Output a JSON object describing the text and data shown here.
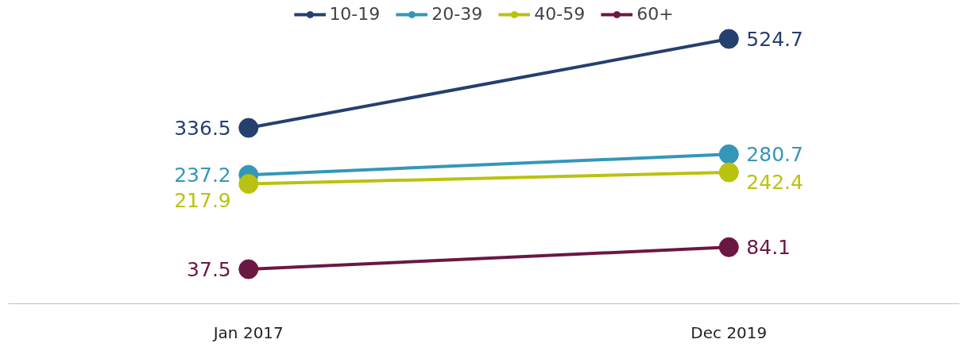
{
  "chart_data": {
    "type": "line",
    "categories": [
      "Jan 2017",
      "Dec 2019"
    ],
    "series": [
      {
        "name": "10-19",
        "color": "#253f6e",
        "values": [
          336.5,
          524.7
        ]
      },
      {
        "name": "20-39",
        "color": "#3497b9",
        "values": [
          237.2,
          280.7
        ]
      },
      {
        "name": "40-59",
        "color": "#b9c20f",
        "values": [
          217.9,
          242.4
        ]
      },
      {
        "name": "60+",
        "color": "#6b1744",
        "values": [
          37.5,
          84.1
        ]
      }
    ],
    "data_labels": true,
    "legend": "top",
    "marker": "circle",
    "line_style": "solid",
    "grid": false,
    "tick_labels": "x"
  }
}
